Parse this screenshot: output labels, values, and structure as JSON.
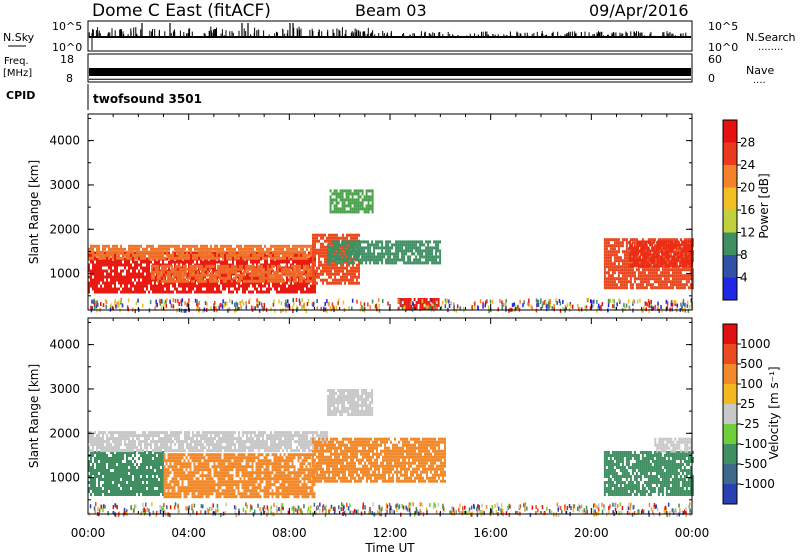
{
  "header": {
    "radar_title": "Dome C East (fitACF)",
    "beam": "Beam 03",
    "date": "09/Apr/2016"
  },
  "nsky_panel": {
    "left_label": "N.Sky",
    "right_label": "N.Search",
    "tick_high": "10^5",
    "tick_low": "10^0",
    "right_dots": "........"
  },
  "freq_panel": {
    "left_label_1": "Freq.",
    "left_label_2": "[MHz]",
    "left_tick_high": "18",
    "left_tick_low": "8",
    "right_label": "Nave",
    "right_tick_high": "60",
    "right_tick_low": "0",
    "right_dots": "....",
    "freq_level_mhz": 10,
    "nave_level": 6
  },
  "cpid_panel": {
    "label": "CPID",
    "value": "twofsound 3501"
  },
  "x_axis": {
    "title": "Time UT",
    "ticks": [
      "00:00",
      "04:00",
      "08:00",
      "12:00",
      "16:00",
      "20:00",
      "00:00"
    ]
  },
  "chart_data": [
    {
      "type": "heatmap",
      "panel": "power",
      "ylabel": "Slant Range [km]",
      "ylim": [
        180,
        4600
      ],
      "yticks": [
        "1000",
        "2000",
        "3000",
        "4000"
      ],
      "xlim_hours": [
        0,
        24
      ],
      "colorbar": {
        "label": "Power [dB]",
        "ticks": [
          "4",
          "8",
          "12",
          "16",
          "20",
          "24",
          "28"
        ],
        "colors": [
          "#1f26e6",
          "#2f52a8",
          "#3f8f63",
          "#bfd23d",
          "#f1bf22",
          "#f3822a",
          "#ec3a1f",
          "#e61010"
        ]
      },
      "regions": [
        {
          "t0": 0.0,
          "t1": 9.0,
          "r0": 600,
          "r1": 1500,
          "color": "#e81a12"
        },
        {
          "t0": 0.0,
          "t1": 9.0,
          "r0": 1350,
          "r1": 1650,
          "color": "#f0742a"
        },
        {
          "t0": 2.5,
          "t1": 9.0,
          "r0": 800,
          "r1": 1200,
          "color": "#ef6e2a"
        },
        {
          "t0": 8.9,
          "t1": 10.8,
          "r0": 800,
          "r1": 1900,
          "color": "#ec4a1e"
        },
        {
          "t0": 9.5,
          "t1": 14.0,
          "r0": 1250,
          "r1": 1750,
          "color": "#3f8f63"
        },
        {
          "t0": 9.6,
          "t1": 11.3,
          "r0": 2400,
          "r1": 2900,
          "color": "#4aa04b"
        },
        {
          "t0": 12.3,
          "t1": 13.9,
          "r0": 200,
          "r1": 450,
          "color": "#e81a12"
        },
        {
          "t0": 20.5,
          "t1": 24.0,
          "r0": 700,
          "r1": 1800,
          "color": "#e6461e"
        },
        {
          "t0": 21.5,
          "t1": 24.0,
          "r0": 1200,
          "r1": 1750,
          "color": "#ec2b14"
        }
      ]
    },
    {
      "type": "heatmap",
      "panel": "velocity",
      "ylabel": "Slant Range [km]",
      "ylim": [
        180,
        4600
      ],
      "yticks": [
        "1000",
        "2000",
        "3000",
        "4000"
      ],
      "xlim_hours": [
        0,
        24
      ],
      "colorbar": {
        "label": "Velocity [m s⁻¹]",
        "ticks": [
          "1000",
          "500",
          "100",
          "25",
          "-25",
          "-100",
          "-500",
          "-1000"
        ],
        "colors": [
          "#2a40b0",
          "#3d6a8c",
          "#3f8f63",
          "#6fcf3a",
          "#c8c8c8",
          "#f4b820",
          "#f2892a",
          "#ec4a1e",
          "#e01010"
        ]
      },
      "regions": [
        {
          "t0": 0.0,
          "t1": 3.0,
          "r0": 600,
          "r1": 1600,
          "color": "#3f8f63"
        },
        {
          "t0": 3.0,
          "t1": 9.0,
          "r0": 600,
          "r1": 1550,
          "color": "#f2892a"
        },
        {
          "t0": 0.0,
          "t1": 9.5,
          "r0": 1600,
          "r1": 2050,
          "color": "#c8c8c8"
        },
        {
          "t0": 8.9,
          "t1": 14.2,
          "r0": 900,
          "r1": 1900,
          "color": "#f2892a"
        },
        {
          "t0": 9.5,
          "t1": 11.3,
          "r0": 2400,
          "r1": 3000,
          "color": "#c8c8c8"
        },
        {
          "t0": 20.5,
          "t1": 24.0,
          "r0": 650,
          "r1": 1600,
          "color": "#3f8f63"
        },
        {
          "t0": 22.5,
          "t1": 24.0,
          "r0": 1600,
          "r1": 1900,
          "color": "#c8c8c8"
        }
      ]
    }
  ]
}
